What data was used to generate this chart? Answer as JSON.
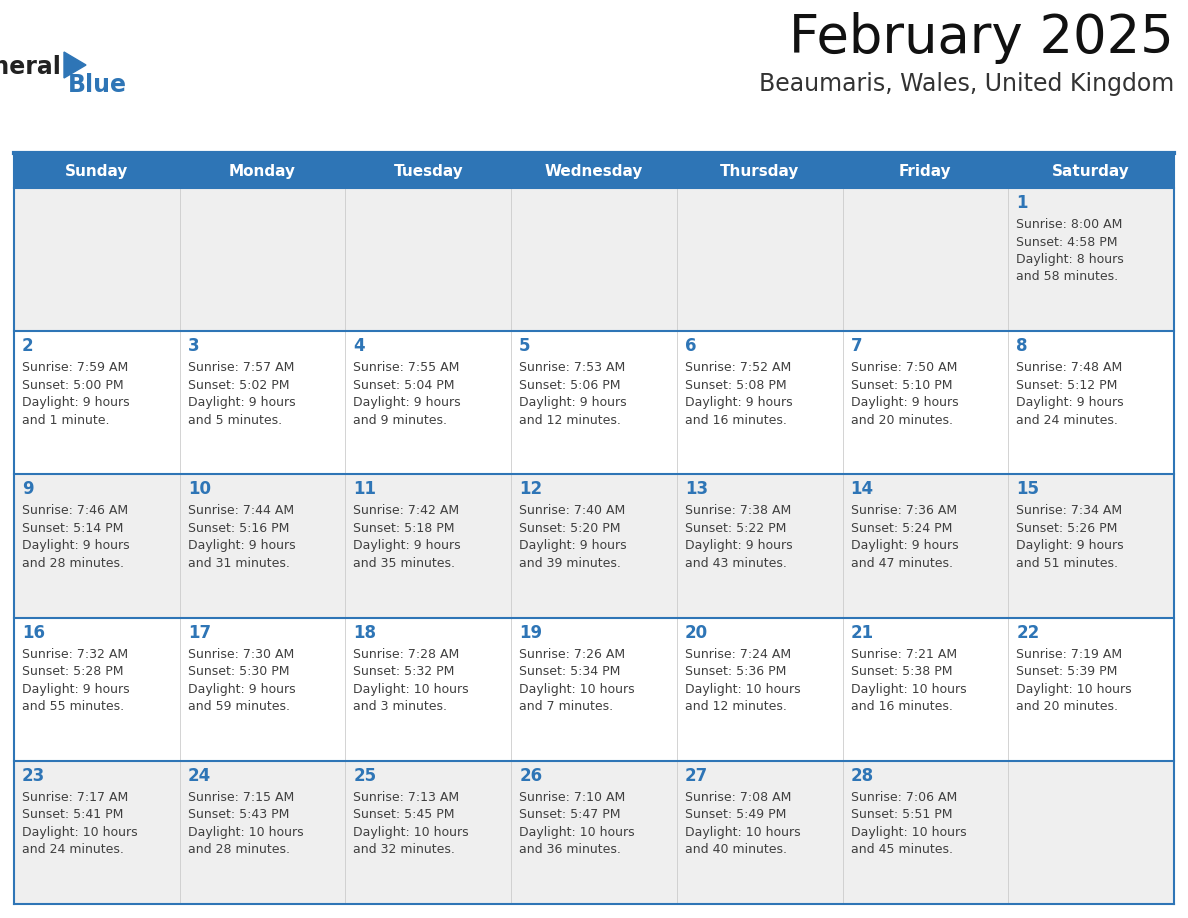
{
  "title": "February 2025",
  "subtitle": "Beaumaris, Wales, United Kingdom",
  "days_of_week": [
    "Sunday",
    "Monday",
    "Tuesday",
    "Wednesday",
    "Thursday",
    "Friday",
    "Saturday"
  ],
  "header_bg": "#2E75B6",
  "header_text": "#FFFFFF",
  "row_bg_odd": "#EFEFEF",
  "row_bg_even": "#FFFFFF",
  "line_color": "#2E75B6",
  "day_number_color": "#2E75B6",
  "text_color": "#404040",
  "logo_general_color": "#222222",
  "logo_blue_color": "#2E75B6",
  "title_fontsize": 38,
  "subtitle_fontsize": 17,
  "dow_fontsize": 11,
  "day_num_fontsize": 12,
  "cell_text_fontsize": 9,
  "weeks": [
    [
      null,
      null,
      null,
      null,
      null,
      null,
      1
    ],
    [
      2,
      3,
      4,
      5,
      6,
      7,
      8
    ],
    [
      9,
      10,
      11,
      12,
      13,
      14,
      15
    ],
    [
      16,
      17,
      18,
      19,
      20,
      21,
      22
    ],
    [
      23,
      24,
      25,
      26,
      27,
      28,
      null
    ]
  ],
  "cell_data": {
    "1": [
      "Sunrise: 8:00 AM",
      "Sunset: 4:58 PM",
      "Daylight: 8 hours",
      "and 58 minutes."
    ],
    "2": [
      "Sunrise: 7:59 AM",
      "Sunset: 5:00 PM",
      "Daylight: 9 hours",
      "and 1 minute."
    ],
    "3": [
      "Sunrise: 7:57 AM",
      "Sunset: 5:02 PM",
      "Daylight: 9 hours",
      "and 5 minutes."
    ],
    "4": [
      "Sunrise: 7:55 AM",
      "Sunset: 5:04 PM",
      "Daylight: 9 hours",
      "and 9 minutes."
    ],
    "5": [
      "Sunrise: 7:53 AM",
      "Sunset: 5:06 PM",
      "Daylight: 9 hours",
      "and 12 minutes."
    ],
    "6": [
      "Sunrise: 7:52 AM",
      "Sunset: 5:08 PM",
      "Daylight: 9 hours",
      "and 16 minutes."
    ],
    "7": [
      "Sunrise: 7:50 AM",
      "Sunset: 5:10 PM",
      "Daylight: 9 hours",
      "and 20 minutes."
    ],
    "8": [
      "Sunrise: 7:48 AM",
      "Sunset: 5:12 PM",
      "Daylight: 9 hours",
      "and 24 minutes."
    ],
    "9": [
      "Sunrise: 7:46 AM",
      "Sunset: 5:14 PM",
      "Daylight: 9 hours",
      "and 28 minutes."
    ],
    "10": [
      "Sunrise: 7:44 AM",
      "Sunset: 5:16 PM",
      "Daylight: 9 hours",
      "and 31 minutes."
    ],
    "11": [
      "Sunrise: 7:42 AM",
      "Sunset: 5:18 PM",
      "Daylight: 9 hours",
      "and 35 minutes."
    ],
    "12": [
      "Sunrise: 7:40 AM",
      "Sunset: 5:20 PM",
      "Daylight: 9 hours",
      "and 39 minutes."
    ],
    "13": [
      "Sunrise: 7:38 AM",
      "Sunset: 5:22 PM",
      "Daylight: 9 hours",
      "and 43 minutes."
    ],
    "14": [
      "Sunrise: 7:36 AM",
      "Sunset: 5:24 PM",
      "Daylight: 9 hours",
      "and 47 minutes."
    ],
    "15": [
      "Sunrise: 7:34 AM",
      "Sunset: 5:26 PM",
      "Daylight: 9 hours",
      "and 51 minutes."
    ],
    "16": [
      "Sunrise: 7:32 AM",
      "Sunset: 5:28 PM",
      "Daylight: 9 hours",
      "and 55 minutes."
    ],
    "17": [
      "Sunrise: 7:30 AM",
      "Sunset: 5:30 PM",
      "Daylight: 9 hours",
      "and 59 minutes."
    ],
    "18": [
      "Sunrise: 7:28 AM",
      "Sunset: 5:32 PM",
      "Daylight: 10 hours",
      "and 3 minutes."
    ],
    "19": [
      "Sunrise: 7:26 AM",
      "Sunset: 5:34 PM",
      "Daylight: 10 hours",
      "and 7 minutes."
    ],
    "20": [
      "Sunrise: 7:24 AM",
      "Sunset: 5:36 PM",
      "Daylight: 10 hours",
      "and 12 minutes."
    ],
    "21": [
      "Sunrise: 7:21 AM",
      "Sunset: 5:38 PM",
      "Daylight: 10 hours",
      "and 16 minutes."
    ],
    "22": [
      "Sunrise: 7:19 AM",
      "Sunset: 5:39 PM",
      "Daylight: 10 hours",
      "and 20 minutes."
    ],
    "23": [
      "Sunrise: 7:17 AM",
      "Sunset: 5:41 PM",
      "Daylight: 10 hours",
      "and 24 minutes."
    ],
    "24": [
      "Sunrise: 7:15 AM",
      "Sunset: 5:43 PM",
      "Daylight: 10 hours",
      "and 28 minutes."
    ],
    "25": [
      "Sunrise: 7:13 AM",
      "Sunset: 5:45 PM",
      "Daylight: 10 hours",
      "and 32 minutes."
    ],
    "26": [
      "Sunrise: 7:10 AM",
      "Sunset: 5:47 PM",
      "Daylight: 10 hours",
      "and 36 minutes."
    ],
    "27": [
      "Sunrise: 7:08 AM",
      "Sunset: 5:49 PM",
      "Daylight: 10 hours",
      "and 40 minutes."
    ],
    "28": [
      "Sunrise: 7:06 AM",
      "Sunset: 5:51 PM",
      "Daylight: 10 hours",
      "and 45 minutes."
    ]
  }
}
